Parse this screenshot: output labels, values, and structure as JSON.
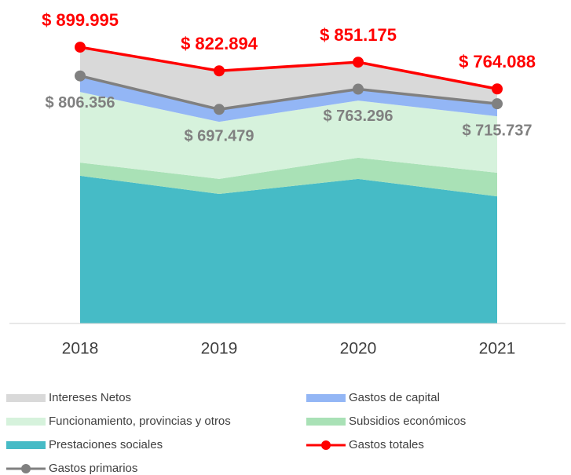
{
  "chart_data": {
    "type": "area",
    "categories": [
      "2018",
      "2019",
      "2020",
      "2021"
    ],
    "ylim": [
      0,
      1000000
    ],
    "series": [
      {
        "name": "Intereses Netos",
        "kind": "area",
        "color": "#d9d9d9",
        "values": [
          93639,
          125415,
          87879,
          48351
        ]
      },
      {
        "name": "Gastos de capital",
        "kind": "area",
        "color": "#93b6f5",
        "values": [
          52356,
          40479,
          37296,
          40737
        ]
      },
      {
        "name": "Funcionamiento, provincias y otros",
        "kind": "area",
        "color": "#d6f2dc",
        "values": [
          230000,
          186000,
          186000,
          184000
        ]
      },
      {
        "name": "Subsidios económicos",
        "kind": "area",
        "color": "#a9e1b6",
        "values": [
          43000,
          49000,
          69000,
          77000
        ]
      },
      {
        "name": "Prestaciones sociales",
        "kind": "area",
        "color": "#46bbc6",
        "values": [
          481000,
          422000,
          471000,
          414000
        ]
      },
      {
        "name": "Gastos totales",
        "kind": "line",
        "color": "#ff0000",
        "values": [
          899995,
          822894,
          851175,
          764088
        ],
        "value_labels": [
          "$ 899.995",
          "$ 822.894",
          "$ 851.175",
          "$ 764.088"
        ]
      },
      {
        "name": "Gastos primarios",
        "kind": "line",
        "color": "#808080",
        "values": [
          806356,
          697479,
          763296,
          715737
        ],
        "value_labels": [
          "$ 806.356",
          "$ 697.479",
          "$ 763.296",
          "$ 715.737"
        ]
      }
    ]
  }
}
